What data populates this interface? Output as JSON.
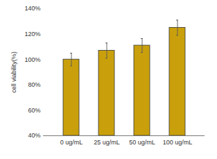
{
  "chart_data": {
    "type": "bar",
    "categories": [
      "0 ug/mL",
      "25 ug/mL",
      "50 ug/mL",
      "100 ug/mL"
    ],
    "values": [
      100,
      107,
      111,
      125
    ],
    "errors": [
      5,
      6,
      5.5,
      6
    ],
    "color": "#c9a00c",
    "y_label": "cell viability(%)",
    "ylim": [
      40,
      140
    ],
    "yticks": [
      {
        "value": 40,
        "label": "40%"
      },
      {
        "value": 60,
        "label": "60%"
      },
      {
        "value": 80,
        "label": "80%"
      },
      {
        "value": 100,
        "label": "100%"
      },
      {
        "value": 120,
        "label": "120%"
      },
      {
        "value": 140,
        "label": "140%"
      }
    ],
    "grid": false
  }
}
